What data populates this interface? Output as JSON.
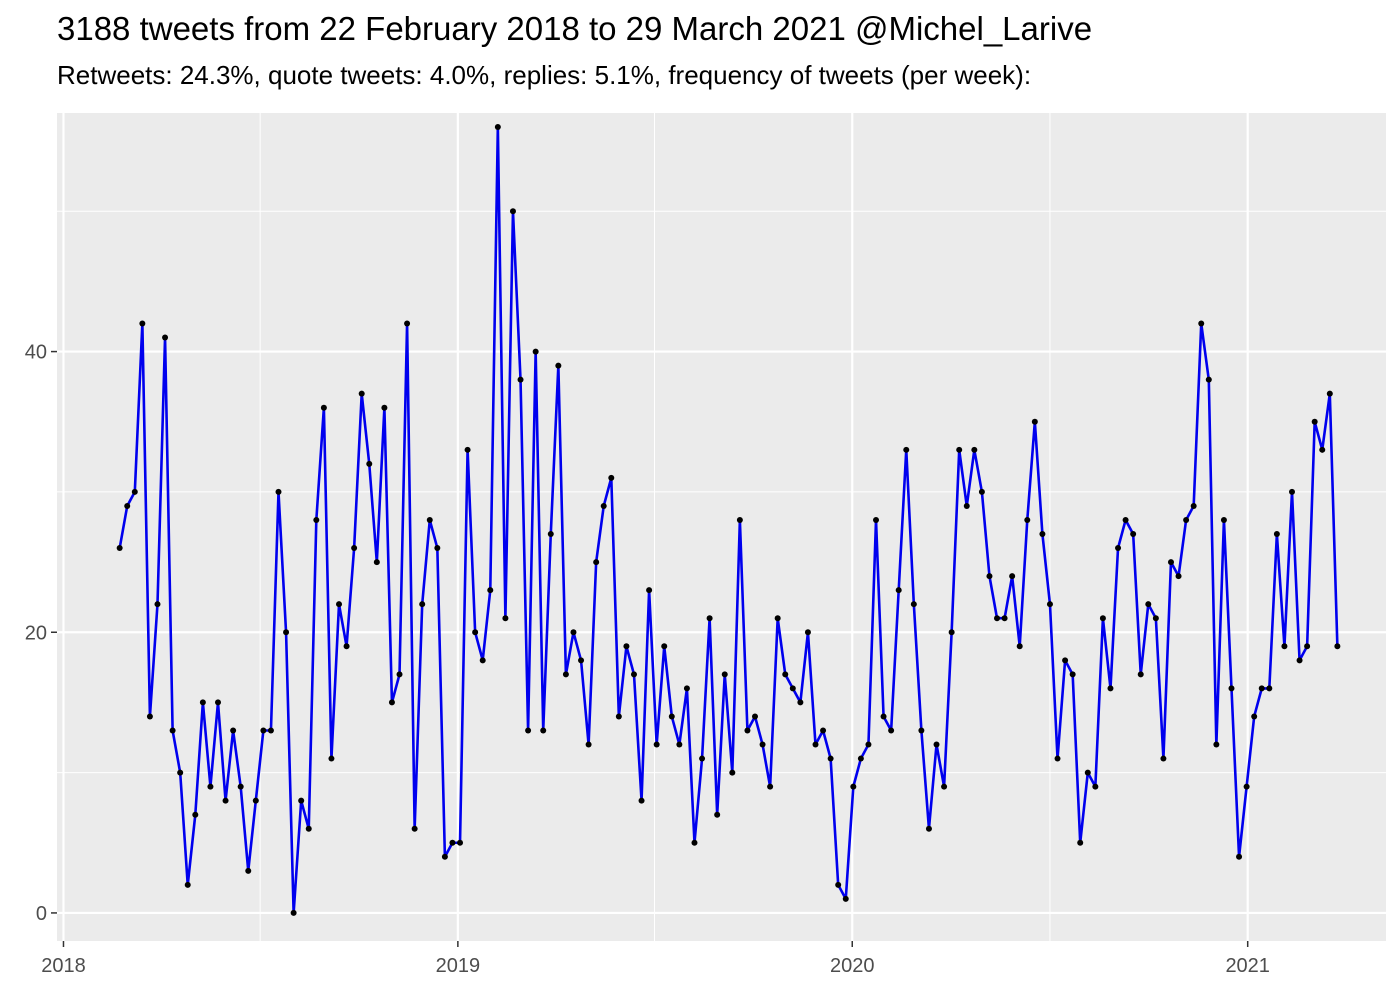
{
  "chart_data": {
    "type": "line",
    "title": "3188 tweets from 22 February 2018 to 29 March 2021 @Michel_Larive",
    "subtitle": "Retweets: 24.3%, quote tweets: 4.0%, replies: 5.1%, frequency of tweets (per week):",
    "xlabel": "",
    "ylabel": "",
    "x_ticks": [
      {
        "label": "2018",
        "date": "2018-01-01"
      },
      {
        "label": "2019",
        "date": "2019-01-01"
      },
      {
        "label": "2020",
        "date": "2020-01-01"
      },
      {
        "label": "2021",
        "date": "2021-01-01"
      }
    ],
    "y_ticks": [
      0,
      20,
      40
    ],
    "ylim": [
      -2,
      57
    ],
    "xlim": [
      "2017-12-26",
      "2021-05-09"
    ],
    "grid": true,
    "colors": {
      "line": "#0000ee",
      "point": "#000000",
      "panel": "#ebebeb",
      "grid": "#ffffff"
    },
    "series": [
      {
        "values": [
          [
            "2018-02-22",
            26
          ],
          [
            "2018-03-01",
            29
          ],
          [
            "2018-03-08",
            30
          ],
          [
            "2018-03-15",
            42
          ],
          [
            "2018-03-22",
            14
          ],
          [
            "2018-03-29",
            22
          ],
          [
            "2018-04-05",
            41
          ],
          [
            "2018-04-12",
            13
          ],
          [
            "2018-04-19",
            10
          ],
          [
            "2018-04-26",
            2
          ],
          [
            "2018-05-03",
            7
          ],
          [
            "2018-05-10",
            15
          ],
          [
            "2018-05-17",
            9
          ],
          [
            "2018-05-24",
            15
          ],
          [
            "2018-05-31",
            8
          ],
          [
            "2018-06-07",
            13
          ],
          [
            "2018-06-14",
            9
          ],
          [
            "2018-06-21",
            3
          ],
          [
            "2018-06-28",
            8
          ],
          [
            "2018-07-05",
            13
          ],
          [
            "2018-07-12",
            13
          ],
          [
            "2018-07-19",
            30
          ],
          [
            "2018-07-26",
            20
          ],
          [
            "2018-08-02",
            0
          ],
          [
            "2018-08-09",
            8
          ],
          [
            "2018-08-16",
            6
          ],
          [
            "2018-08-23",
            28
          ],
          [
            "2018-08-30",
            36
          ],
          [
            "2018-09-06",
            11
          ],
          [
            "2018-09-13",
            22
          ],
          [
            "2018-09-20",
            19
          ],
          [
            "2018-09-27",
            26
          ],
          [
            "2018-10-04",
            37
          ],
          [
            "2018-10-11",
            32
          ],
          [
            "2018-10-18",
            25
          ],
          [
            "2018-10-25",
            36
          ],
          [
            "2018-11-01",
            15
          ],
          [
            "2018-11-08",
            17
          ],
          [
            "2018-11-15",
            42
          ],
          [
            "2018-11-22",
            6
          ],
          [
            "2018-11-29",
            22
          ],
          [
            "2018-12-06",
            28
          ],
          [
            "2018-12-13",
            26
          ],
          [
            "2018-12-20",
            4
          ],
          [
            "2018-12-27",
            5
          ],
          [
            "2019-01-03",
            5
          ],
          [
            "2019-01-10",
            33
          ],
          [
            "2019-01-17",
            20
          ],
          [
            "2019-01-24",
            18
          ],
          [
            "2019-01-31",
            23
          ],
          [
            "2019-02-07",
            56
          ],
          [
            "2019-02-14",
            21
          ],
          [
            "2019-02-21",
            50
          ],
          [
            "2019-02-28",
            38
          ],
          [
            "2019-03-07",
            13
          ],
          [
            "2019-03-14",
            40
          ],
          [
            "2019-03-21",
            13
          ],
          [
            "2019-03-28",
            27
          ],
          [
            "2019-04-04",
            39
          ],
          [
            "2019-04-11",
            17
          ],
          [
            "2019-04-18",
            20
          ],
          [
            "2019-04-25",
            18
          ],
          [
            "2019-05-02",
            12
          ],
          [
            "2019-05-09",
            25
          ],
          [
            "2019-05-16",
            29
          ],
          [
            "2019-05-23",
            31
          ],
          [
            "2019-05-30",
            14
          ],
          [
            "2019-06-06",
            19
          ],
          [
            "2019-06-13",
            17
          ],
          [
            "2019-06-20",
            8
          ],
          [
            "2019-06-27",
            23
          ],
          [
            "2019-07-04",
            12
          ],
          [
            "2019-07-11",
            19
          ],
          [
            "2019-07-18",
            14
          ],
          [
            "2019-07-25",
            12
          ],
          [
            "2019-08-01",
            16
          ],
          [
            "2019-08-08",
            5
          ],
          [
            "2019-08-15",
            11
          ],
          [
            "2019-08-22",
            21
          ],
          [
            "2019-08-29",
            7
          ],
          [
            "2019-09-05",
            17
          ],
          [
            "2019-09-12",
            10
          ],
          [
            "2019-09-19",
            28
          ],
          [
            "2019-09-26",
            13
          ],
          [
            "2019-10-03",
            14
          ],
          [
            "2019-10-10",
            12
          ],
          [
            "2019-10-17",
            9
          ],
          [
            "2019-10-24",
            21
          ],
          [
            "2019-10-31",
            17
          ],
          [
            "2019-11-07",
            16
          ],
          [
            "2019-11-14",
            15
          ],
          [
            "2019-11-21",
            20
          ],
          [
            "2019-11-28",
            12
          ],
          [
            "2019-12-05",
            13
          ],
          [
            "2019-12-12",
            11
          ],
          [
            "2019-12-19",
            2
          ],
          [
            "2019-12-26",
            1
          ],
          [
            "2020-01-02",
            9
          ],
          [
            "2020-01-09",
            11
          ],
          [
            "2020-01-16",
            12
          ],
          [
            "2020-01-23",
            28
          ],
          [
            "2020-01-30",
            14
          ],
          [
            "2020-02-06",
            13
          ],
          [
            "2020-02-13",
            23
          ],
          [
            "2020-02-20",
            33
          ],
          [
            "2020-02-27",
            22
          ],
          [
            "2020-03-05",
            13
          ],
          [
            "2020-03-12",
            6
          ],
          [
            "2020-03-19",
            12
          ],
          [
            "2020-03-26",
            9
          ],
          [
            "2020-04-02",
            20
          ],
          [
            "2020-04-09",
            33
          ],
          [
            "2020-04-16",
            29
          ],
          [
            "2020-04-23",
            33
          ],
          [
            "2020-04-30",
            30
          ],
          [
            "2020-05-07",
            24
          ],
          [
            "2020-05-14",
            21
          ],
          [
            "2020-05-21",
            21
          ],
          [
            "2020-05-28",
            24
          ],
          [
            "2020-06-04",
            19
          ],
          [
            "2020-06-11",
            28
          ],
          [
            "2020-06-18",
            35
          ],
          [
            "2020-06-25",
            27
          ],
          [
            "2020-07-02",
            22
          ],
          [
            "2020-07-09",
            11
          ],
          [
            "2020-07-16",
            18
          ],
          [
            "2020-07-23",
            17
          ],
          [
            "2020-07-30",
            5
          ],
          [
            "2020-08-06",
            10
          ],
          [
            "2020-08-13",
            9
          ],
          [
            "2020-08-20",
            21
          ],
          [
            "2020-08-27",
            16
          ],
          [
            "2020-09-03",
            26
          ],
          [
            "2020-09-10",
            28
          ],
          [
            "2020-09-17",
            27
          ],
          [
            "2020-09-24",
            17
          ],
          [
            "2020-10-01",
            22
          ],
          [
            "2020-10-08",
            21
          ],
          [
            "2020-10-15",
            11
          ],
          [
            "2020-10-22",
            25
          ],
          [
            "2020-10-29",
            24
          ],
          [
            "2020-11-05",
            28
          ],
          [
            "2020-11-12",
            29
          ],
          [
            "2020-11-19",
            42
          ],
          [
            "2020-11-26",
            38
          ],
          [
            "2020-12-03",
            12
          ],
          [
            "2020-12-10",
            28
          ],
          [
            "2020-12-17",
            16
          ],
          [
            "2020-12-24",
            4
          ],
          [
            "2020-12-31",
            9
          ],
          [
            "2021-01-07",
            14
          ],
          [
            "2021-01-14",
            16
          ],
          [
            "2021-01-21",
            16
          ],
          [
            "2021-01-28",
            27
          ],
          [
            "2021-02-04",
            19
          ],
          [
            "2021-02-11",
            30
          ],
          [
            "2021-02-18",
            18
          ],
          [
            "2021-02-25",
            19
          ],
          [
            "2021-03-04",
            35
          ],
          [
            "2021-03-11",
            33
          ],
          [
            "2021-03-18",
            37
          ],
          [
            "2021-03-25",
            19
          ]
        ]
      }
    ]
  }
}
